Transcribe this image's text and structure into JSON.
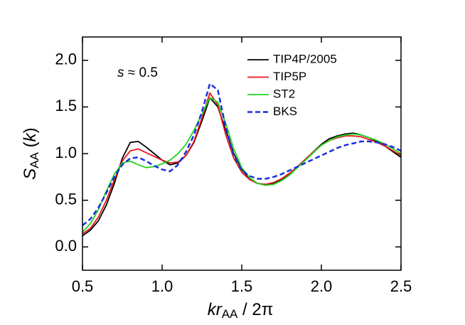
{
  "chart_data": {
    "type": "line",
    "xlabel": [
      "kr",
      "AA",
      " / 2π"
    ],
    "ylabel": [
      "S",
      "AA",
      " (",
      "k",
      ")"
    ],
    "annotation": [
      "s",
      " ≈ 0.5"
    ],
    "xlim": [
      0.5,
      2.5
    ],
    "ylim": [
      -0.25,
      2.25
    ],
    "xticks": [
      0.5,
      {
        "value": 1,
        "label": "1.0"
      },
      1.5,
      {
        "value": 2,
        "label": "2.0"
      },
      2.5
    ],
    "yticks": [
      {
        "value": 0,
        "label": "0.0"
      },
      0.5,
      {
        "value": 1,
        "label": "1.0"
      },
      1.5,
      {
        "value": 2,
        "label": "2.0"
      }
    ],
    "legend": "upper right",
    "x": [
      0.5,
      0.55,
      0.6,
      0.65,
      0.7,
      0.75,
      0.8,
      0.85,
      0.9,
      0.95,
      1.0,
      1.05,
      1.1,
      1.15,
      1.2,
      1.25,
      1.3,
      1.35,
      1.4,
      1.45,
      1.5,
      1.55,
      1.6,
      1.65,
      1.7,
      1.75,
      1.8,
      1.85,
      1.9,
      1.95,
      2.0,
      2.05,
      2.1,
      2.15,
      2.2,
      2.25,
      2.3,
      2.35,
      2.4,
      2.45,
      2.5
    ],
    "series": [
      {
        "name": "TIP4P/2005",
        "color": "#000000",
        "dashed": false,
        "values": [
          0.12,
          0.18,
          0.28,
          0.45,
          0.68,
          0.95,
          1.12,
          1.13,
          1.07,
          1.0,
          0.93,
          0.88,
          0.9,
          0.98,
          1.12,
          1.35,
          1.6,
          1.5,
          1.25,
          1.0,
          0.83,
          0.73,
          0.68,
          0.67,
          0.68,
          0.72,
          0.78,
          0.86,
          0.94,
          1.02,
          1.1,
          1.16,
          1.19,
          1.21,
          1.22,
          1.2,
          1.17,
          1.13,
          1.08,
          1.02,
          0.96
        ]
      },
      {
        "name": "TIP5P",
        "color": "#e8141b",
        "dashed": false,
        "values": [
          0.14,
          0.2,
          0.32,
          0.5,
          0.72,
          0.92,
          1.03,
          1.05,
          1.01,
          0.97,
          0.93,
          0.9,
          0.91,
          0.98,
          1.13,
          1.38,
          1.65,
          1.52,
          1.2,
          0.95,
          0.8,
          0.72,
          0.68,
          0.67,
          0.69,
          0.73,
          0.79,
          0.86,
          0.94,
          1.02,
          1.09,
          1.14,
          1.17,
          1.19,
          1.19,
          1.18,
          1.15,
          1.12,
          1.08,
          1.03,
          0.98
        ]
      },
      {
        "name": "ST2",
        "color": "#1ed51e",
        "dashed": false,
        "values": [
          0.16,
          0.25,
          0.4,
          0.6,
          0.78,
          0.9,
          0.92,
          0.88,
          0.85,
          0.86,
          0.89,
          0.93,
          1.0,
          1.1,
          1.25,
          1.42,
          1.6,
          1.55,
          1.32,
          1.05,
          0.85,
          0.74,
          0.68,
          0.66,
          0.67,
          0.71,
          0.77,
          0.85,
          0.93,
          1.01,
          1.09,
          1.14,
          1.18,
          1.2,
          1.21,
          1.2,
          1.17,
          1.14,
          1.1,
          1.05,
          1.0
        ]
      },
      {
        "name": "BKS",
        "color": "#1b2ee0",
        "dashed": true,
        "values": [
          0.23,
          0.3,
          0.42,
          0.58,
          0.75,
          0.88,
          0.95,
          0.96,
          0.92,
          0.87,
          0.83,
          0.81,
          0.88,
          1.02,
          1.2,
          1.45,
          1.75,
          1.68,
          1.28,
          0.98,
          0.82,
          0.76,
          0.73,
          0.73,
          0.75,
          0.78,
          0.82,
          0.86,
          0.9,
          0.94,
          0.98,
          1.02,
          1.06,
          1.09,
          1.11,
          1.13,
          1.13,
          1.12,
          1.1,
          1.07,
          1.03
        ]
      }
    ]
  }
}
